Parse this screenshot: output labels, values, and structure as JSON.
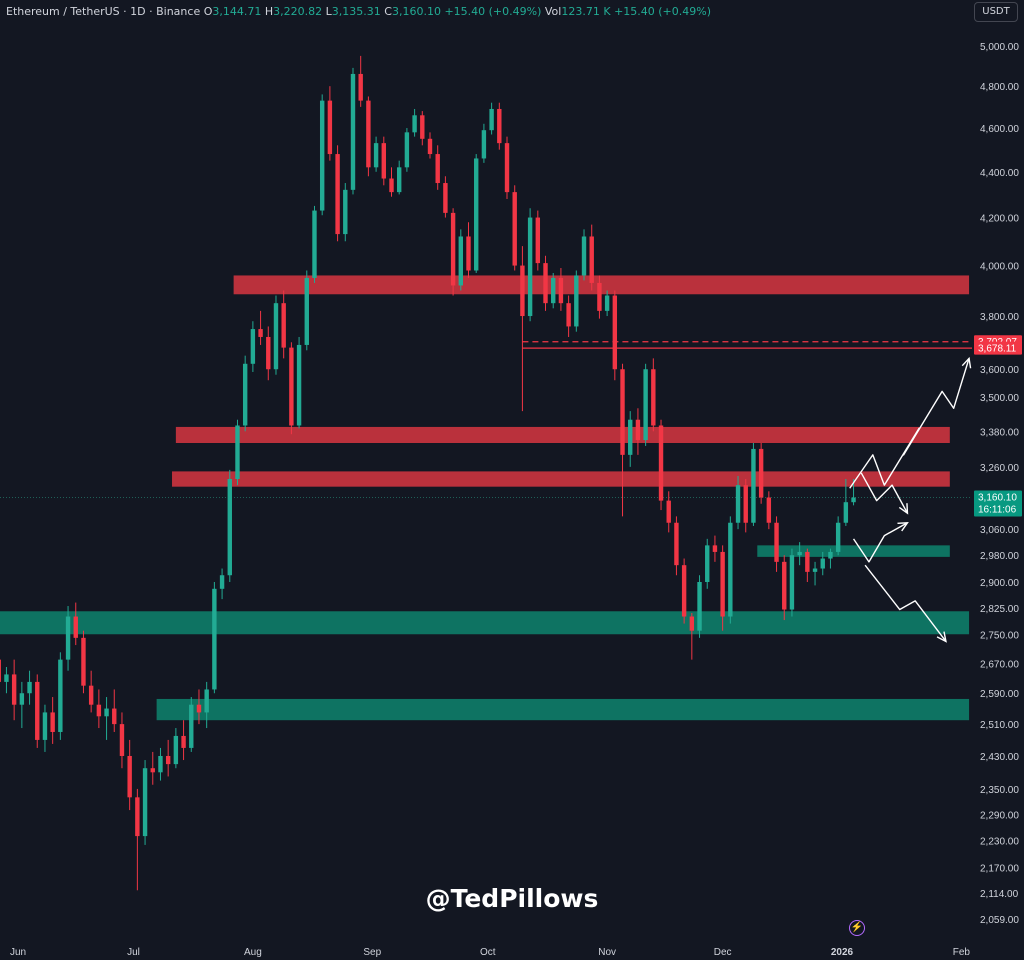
{
  "header": {
    "symbol": "Ethereum / TetherUS · 1D · Binance",
    "open_label": "O",
    "open": "3,144.71",
    "high_label": "H",
    "high": "3,220.82",
    "low_label": "L",
    "low": "3,135.31",
    "close_label": "C",
    "close": "3,160.10",
    "change": "+15.40 (+0.49%)",
    "vol_label": "Vol",
    "vol": "123.71 K",
    "vol_change": "+15.40 (+0.49%)"
  },
  "unit_button": "USDT",
  "watermark": "@TedPillows",
  "bolt_icon": "lightning-bolt-icon",
  "colors": {
    "background": "#131722",
    "up": "#22ab94",
    "down": "#f23645",
    "resistance_zone": "#c9343f",
    "support_zone": "#0e7c68",
    "text": "#d1d4dc"
  },
  "chart_data": {
    "type": "candlestick",
    "title": "Ethereum / TetherUS · 1D · Binance",
    "x_ticks": [
      "Jun",
      "Jul",
      "Aug",
      "Sep",
      "Oct",
      "Nov",
      "Dec",
      "2026",
      "Feb"
    ],
    "y_ticks": [
      5000,
      4800,
      4600,
      4400,
      4200,
      4000,
      3800,
      3600,
      3500,
      3380,
      3260,
      3060,
      2980,
      2900,
      2825,
      2750,
      2670,
      2590,
      2510,
      2430,
      2350,
      2290,
      2230,
      2170,
      2114,
      2059
    ],
    "y_tick_labels": [
      "5,000.00",
      "4,800.00",
      "4,600.00",
      "4,400.00",
      "4,200.00",
      "4,000.00",
      "3,800.00",
      "3,600.00",
      "3,500.00",
      "3,380.00",
      "3,260.00",
      "3,060.00",
      "2,980.00",
      "2,900.00",
      "2,825.00",
      "2,750.00",
      "2,670.00",
      "2,590.00",
      "2,510.00",
      "2,430.00",
      "2,350.00",
      "2,290.00",
      "2,230.00",
      "2,170.00",
      "2,114.00",
      "2,059.00"
    ],
    "y_scale": "log",
    "y_range": [
      2030,
      5150
    ],
    "price_labels": [
      {
        "value": 3702.07,
        "text": "3,702.07",
        "color": "#f23645"
      },
      {
        "value": 3678.11,
        "text": "3,678.11",
        "color": "#f23645"
      }
    ],
    "last_price": {
      "value": 3160.1,
      "text": "3,160.10",
      "countdown": "16:11:06",
      "color": "#089981"
    },
    "resistance_zones": [
      {
        "from": "2025-07-27",
        "to": "2026-02-03",
        "low": 3885,
        "high": 3960
      },
      {
        "from": "2025-07-12",
        "to": "2026-01-29",
        "low": 3340,
        "high": 3395
      },
      {
        "from": "2025-07-11",
        "to": "2026-01-29",
        "low": 3195,
        "high": 3245
      }
    ],
    "support_zones": [
      {
        "from": "2025-12-10",
        "to": "2026-01-29",
        "low": 2975,
        "high": 3010
      },
      {
        "from": "2025-05-27",
        "to": "2026-02-03",
        "low": 2750,
        "high": 2815
      },
      {
        "from": "2025-07-07",
        "to": "2026-02-03",
        "low": 2520,
        "high": 2575
      }
    ],
    "horizontal_lines": [
      {
        "from": "2025-10-10",
        "to": "2026-02-03",
        "value": 3702.07,
        "style": "dashed",
        "color": "#f23645"
      },
      {
        "from": "2025-10-10",
        "to": "2026-02-03",
        "value": 3678.11,
        "style": "solid",
        "color": "#f23645"
      }
    ],
    "projection_paths": [
      {
        "points": [
          [
            "2026-01-03",
            3190
          ],
          [
            "2026-01-09",
            3300
          ],
          [
            "2026-01-12",
            3200
          ],
          [
            "2026-01-21",
            3390
          ],
          [
            "2026-01-17",
            3300
          ],
          [
            "2026-01-27",
            3520
          ],
          [
            "2026-01-30",
            3460
          ],
          [
            "2026-02-03",
            3640
          ]
        ]
      },
      {
        "points": [
          [
            "2026-01-06",
            3240
          ],
          [
            "2026-01-10",
            3150
          ],
          [
            "2026-01-14",
            3200
          ],
          [
            "2026-01-18",
            3110
          ]
        ]
      },
      {
        "points": [
          [
            "2026-01-04",
            3030
          ],
          [
            "2026-01-08",
            2960
          ],
          [
            "2026-01-12",
            3040
          ],
          [
            "2026-01-18",
            3080
          ]
        ]
      },
      {
        "points": [
          [
            "2026-01-07",
            2950
          ],
          [
            "2026-01-16",
            2820
          ],
          [
            "2026-01-20",
            2845
          ],
          [
            "2026-01-28",
            2730
          ]
        ]
      }
    ],
    "candles": [
      [
        "2025-05-27",
        2680,
        2720,
        2560,
        2620
      ],
      [
        "2025-05-29",
        2620,
        2660,
        2590,
        2640
      ],
      [
        "2025-05-31",
        2640,
        2680,
        2520,
        2560
      ],
      [
        "2025-06-02",
        2560,
        2620,
        2500,
        2590
      ],
      [
        "2025-06-04",
        2590,
        2650,
        2560,
        2620
      ],
      [
        "2025-06-06",
        2620,
        2640,
        2450,
        2470
      ],
      [
        "2025-06-08",
        2470,
        2560,
        2440,
        2540
      ],
      [
        "2025-06-10",
        2540,
        2580,
        2460,
        2490
      ],
      [
        "2025-06-12",
        2490,
        2700,
        2470,
        2680
      ],
      [
        "2025-06-14",
        2680,
        2830,
        2650,
        2800
      ],
      [
        "2025-06-16",
        2800,
        2840,
        2720,
        2740
      ],
      [
        "2025-06-18",
        2740,
        2760,
        2590,
        2610
      ],
      [
        "2025-06-20",
        2610,
        2650,
        2540,
        2560
      ],
      [
        "2025-06-22",
        2560,
        2600,
        2500,
        2530
      ],
      [
        "2025-06-24",
        2530,
        2580,
        2470,
        2550
      ],
      [
        "2025-06-26",
        2550,
        2600,
        2490,
        2510
      ],
      [
        "2025-06-28",
        2510,
        2540,
        2400,
        2430
      ],
      [
        "2025-06-30",
        2430,
        2470,
        2300,
        2330
      ],
      [
        "2025-07-02",
        2330,
        2350,
        2120,
        2240
      ],
      [
        "2025-07-04",
        2240,
        2420,
        2220,
        2400
      ],
      [
        "2025-07-06",
        2400,
        2440,
        2360,
        2390
      ],
      [
        "2025-07-08",
        2390,
        2450,
        2370,
        2430
      ],
      [
        "2025-07-10",
        2430,
        2470,
        2380,
        2410
      ],
      [
        "2025-07-12",
        2410,
        2500,
        2400,
        2480
      ],
      [
        "2025-07-14",
        2480,
        2520,
        2420,
        2450
      ],
      [
        "2025-07-16",
        2450,
        2580,
        2440,
        2560
      ],
      [
        "2025-07-18",
        2560,
        2600,
        2510,
        2540
      ],
      [
        "2025-07-20",
        2540,
        2620,
        2500,
        2600
      ],
      [
        "2025-07-22",
        2600,
        2900,
        2590,
        2880
      ],
      [
        "2025-07-24",
        2880,
        2940,
        2850,
        2920
      ],
      [
        "2025-07-26",
        2920,
        3250,
        2900,
        3220
      ],
      [
        "2025-07-28",
        3220,
        3420,
        3200,
        3400
      ],
      [
        "2025-07-30",
        3400,
        3650,
        3380,
        3620
      ],
      [
        "2025-08-01",
        3620,
        3780,
        3590,
        3750
      ],
      [
        "2025-08-03",
        3750,
        3820,
        3690,
        3720
      ],
      [
        "2025-08-05",
        3720,
        3760,
        3560,
        3600
      ],
      [
        "2025-08-07",
        3600,
        3880,
        3580,
        3850
      ],
      [
        "2025-08-09",
        3850,
        3900,
        3640,
        3680
      ],
      [
        "2025-08-11",
        3680,
        3700,
        3370,
        3400
      ],
      [
        "2025-08-13",
        3400,
        3720,
        3390,
        3690
      ],
      [
        "2025-08-15",
        3690,
        3980,
        3670,
        3950
      ],
      [
        "2025-08-17",
        3950,
        4250,
        3930,
        4230
      ],
      [
        "2025-08-19",
        4230,
        4760,
        4210,
        4730
      ],
      [
        "2025-08-21",
        4730,
        4800,
        4450,
        4480
      ],
      [
        "2025-08-23",
        4480,
        4520,
        4100,
        4130
      ],
      [
        "2025-08-25",
        4130,
        4350,
        4100,
        4320
      ],
      [
        "2025-08-27",
        4320,
        4890,
        4300,
        4860
      ],
      [
        "2025-08-29",
        4860,
        4950,
        4700,
        4730
      ],
      [
        "2025-08-31",
        4730,
        4750,
        4380,
        4420
      ],
      [
        "2025-09-02",
        4420,
        4560,
        4400,
        4530
      ],
      [
        "2025-09-04",
        4530,
        4560,
        4340,
        4370
      ],
      [
        "2025-09-06",
        4370,
        4420,
        4290,
        4310
      ],
      [
        "2025-09-08",
        4310,
        4450,
        4300,
        4420
      ],
      [
        "2025-09-10",
        4420,
        4600,
        4400,
        4580
      ],
      [
        "2025-09-12",
        4580,
        4690,
        4560,
        4660
      ],
      [
        "2025-09-14",
        4660,
        4680,
        4520,
        4550
      ],
      [
        "2025-09-16",
        4550,
        4580,
        4460,
        4480
      ],
      [
        "2025-09-18",
        4480,
        4520,
        4320,
        4350
      ],
      [
        "2025-09-20",
        4350,
        4380,
        4200,
        4220
      ],
      [
        "2025-09-22",
        4220,
        4240,
        3880,
        3920
      ],
      [
        "2025-09-24",
        3920,
        4150,
        3900,
        4120
      ],
      [
        "2025-09-26",
        4120,
        4180,
        3950,
        3980
      ],
      [
        "2025-09-28",
        3980,
        4480,
        3970,
        4460
      ],
      [
        "2025-09-30",
        4460,
        4620,
        4440,
        4590
      ],
      [
        "2025-10-02",
        4590,
        4720,
        4570,
        4690
      ],
      [
        "2025-10-04",
        4690,
        4720,
        4500,
        4530
      ],
      [
        "2025-10-06",
        4530,
        4560,
        4280,
        4310
      ],
      [
        "2025-10-08",
        4310,
        4340,
        3980,
        4000
      ],
      [
        "2025-10-10",
        4000,
        4080,
        3450,
        3800
      ],
      [
        "2025-10-12",
        3800,
        4240,
        3780,
        4200
      ],
      [
        "2025-10-14",
        4200,
        4230,
        3980,
        4010
      ],
      [
        "2025-10-16",
        4010,
        4040,
        3820,
        3850
      ],
      [
        "2025-10-18",
        3850,
        3970,
        3830,
        3950
      ],
      [
        "2025-10-20",
        3950,
        3990,
        3820,
        3850
      ],
      [
        "2025-10-22",
        3850,
        3880,
        3720,
        3760
      ],
      [
        "2025-10-24",
        3760,
        3980,
        3740,
        3960
      ],
      [
        "2025-10-26",
        3960,
        4150,
        3940,
        4120
      ],
      [
        "2025-10-28",
        4120,
        4170,
        3900,
        3930
      ],
      [
        "2025-10-30",
        3930,
        3960,
        3790,
        3820
      ],
      [
        "2025-11-01",
        3820,
        3900,
        3800,
        3880
      ],
      [
        "2025-11-03",
        3880,
        3900,
        3560,
        3600
      ],
      [
        "2025-11-05",
        3600,
        3620,
        3100,
        3300
      ],
      [
        "2025-11-07",
        3300,
        3450,
        3260,
        3420
      ],
      [
        "2025-11-09",
        3420,
        3460,
        3300,
        3350
      ],
      [
        "2025-11-11",
        3350,
        3620,
        3330,
        3600
      ],
      [
        "2025-11-13",
        3600,
        3640,
        3380,
        3400
      ],
      [
        "2025-11-15",
        3400,
        3420,
        3120,
        3150
      ],
      [
        "2025-11-17",
        3150,
        3180,
        3050,
        3080
      ],
      [
        "2025-11-19",
        3080,
        3100,
        2920,
        2950
      ],
      [
        "2025-11-21",
        2950,
        2970,
        2780,
        2800
      ],
      [
        "2025-11-23",
        2800,
        2810,
        2680,
        2760
      ],
      [
        "2025-11-25",
        2760,
        2920,
        2740,
        2900
      ],
      [
        "2025-11-27",
        2900,
        3030,
        2880,
        3010
      ],
      [
        "2025-11-29",
        3010,
        3040,
        2960,
        2990
      ],
      [
        "2025-12-01",
        2990,
        3010,
        2760,
        2800
      ],
      [
        "2025-12-03",
        2800,
        3100,
        2780,
        3080
      ],
      [
        "2025-12-05",
        3080,
        3230,
        3060,
        3200
      ],
      [
        "2025-12-07",
        3200,
        3220,
        3050,
        3080
      ],
      [
        "2025-12-09",
        3080,
        3340,
        3070,
        3320
      ],
      [
        "2025-12-11",
        3320,
        3340,
        3140,
        3160
      ],
      [
        "2025-12-13",
        3160,
        3180,
        3060,
        3080
      ],
      [
        "2025-12-15",
        3080,
        3100,
        2930,
        2960
      ],
      [
        "2025-12-17",
        2960,
        2980,
        2790,
        2820
      ],
      [
        "2025-12-19",
        2820,
        3000,
        2800,
        2980
      ],
      [
        "2025-12-21",
        2980,
        3020,
        2950,
        2990
      ],
      [
        "2025-12-23",
        2990,
        3000,
        2900,
        2930
      ],
      [
        "2025-12-25",
        2930,
        2960,
        2890,
        2940
      ],
      [
        "2025-12-27",
        2940,
        2990,
        2920,
        2970
      ],
      [
        "2025-12-29",
        2970,
        3000,
        2940,
        2990
      ],
      [
        "2025-12-31",
        2990,
        3100,
        2980,
        3080
      ],
      [
        "2026-01-02",
        3080,
        3220,
        3070,
        3145
      ],
      [
        "2026-01-04",
        3145,
        3220,
        3135,
        3160
      ]
    ]
  }
}
